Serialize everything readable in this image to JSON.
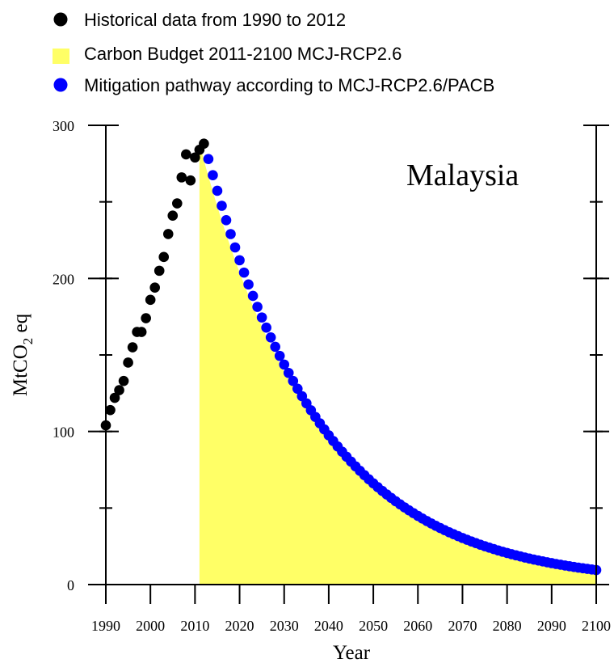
{
  "chart_data": {
    "type": "scatter",
    "title": "Malaysia",
    "xlabel": "Year",
    "ylabel": "MtCO2 eq",
    "ylabel_parts": {
      "main": "MtCO",
      "sub": "2",
      "tail": " eq"
    },
    "xlim": [
      1990,
      2100
    ],
    "ylim": [
      0,
      300
    ],
    "x_ticks": [
      1990,
      2000,
      2010,
      2020,
      2030,
      2040,
      2050,
      2060,
      2070,
      2080,
      2090,
      2100
    ],
    "y_ticks": [
      0,
      100,
      200,
      300
    ],
    "legend_position": "top",
    "series": [
      {
        "name": "Historical data from 1990 to 2012",
        "kind": "points",
        "color": "#000000",
        "x": [
          1990,
          1991,
          1992,
          1993,
          1994,
          1995,
          1996,
          1997,
          1998,
          1999,
          2000,
          2001,
          2002,
          2003,
          2004,
          2005,
          2006,
          2007,
          2008,
          2009,
          2010,
          2011,
          2012
        ],
        "y": [
          104,
          114,
          122,
          127,
          133,
          145,
          155,
          165,
          165,
          174,
          186,
          194,
          205,
          214,
          229,
          241,
          249,
          266,
          281,
          264,
          279,
          284,
          288
        ]
      },
      {
        "name": "Carbon Budget 2011-2100 MCJ-RCP2.6",
        "kind": "area",
        "color": "#ffff66",
        "x": [
          2011,
          2100
        ],
        "start_value": 288,
        "end_value": 9.5
      },
      {
        "name": "Mitigation pathway according to MCJ-RCP2.6/PACB",
        "kind": "points",
        "color": "#0000ff",
        "x": [
          2013,
          2100
        ],
        "start_value": 278,
        "end_value": 9.5,
        "shape": "exponential decay, yearly points"
      }
    ]
  }
}
